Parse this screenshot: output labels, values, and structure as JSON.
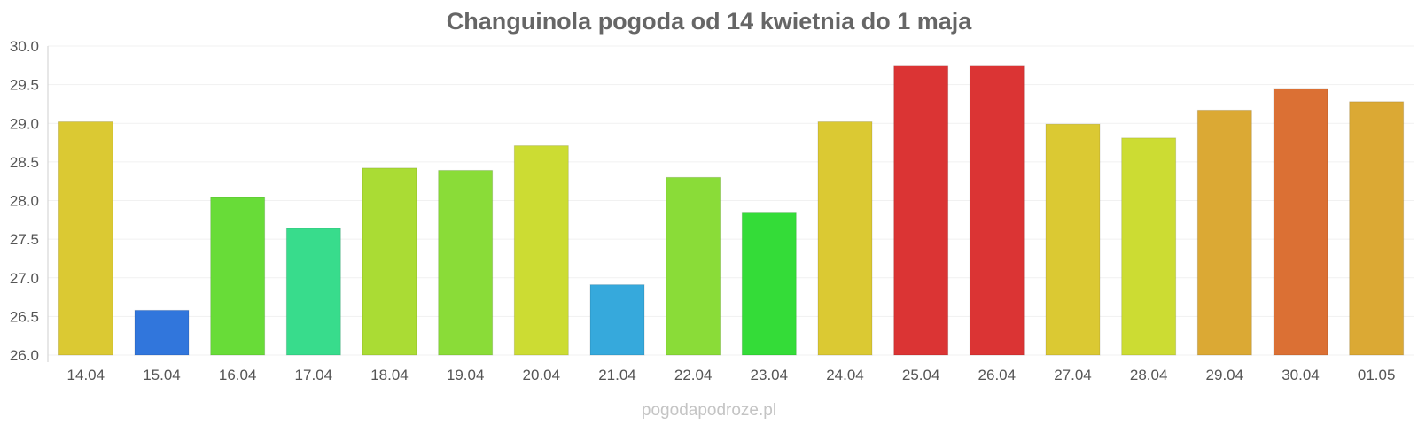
{
  "chart_data": {
    "type": "bar",
    "title": "Changuinola pogoda od 14 kwietnia do 1 maja",
    "xlabel": "",
    "ylabel": "",
    "ylim": [
      26.0,
      30.0
    ],
    "yticks": [
      "26.0",
      "26.5",
      "27.0",
      "27.5",
      "28.0",
      "28.5",
      "29.0",
      "29.5",
      "30.0"
    ],
    "grid": true,
    "categories": [
      "14.04",
      "15.04",
      "16.04",
      "17.04",
      "18.04",
      "19.04",
      "20.04",
      "21.04",
      "22.04",
      "23.04",
      "24.04",
      "25.04",
      "26.04",
      "27.04",
      "28.04",
      "29.04",
      "30.04",
      "01.05"
    ],
    "values": [
      29.02,
      26.58,
      28.04,
      27.64,
      28.42,
      28.39,
      28.71,
      26.91,
      28.3,
      27.85,
      29.02,
      29.75,
      29.75,
      28.99,
      28.81,
      29.17,
      29.45,
      29.28
    ],
    "colors": [
      "#dbc933",
      "#3176dc",
      "#68dc38",
      "#38dc8c",
      "#aadc34",
      "#8adc38",
      "#ccdc33",
      "#36a9dc",
      "#8adc38",
      "#34dc38",
      "#dbc933",
      "#db3434",
      "#db3434",
      "#dbc933",
      "#ccdc33",
      "#dba934",
      "#db7034",
      "#dba934"
    ]
  },
  "footer": {
    "watermark": "pogodapodroze.pl"
  }
}
